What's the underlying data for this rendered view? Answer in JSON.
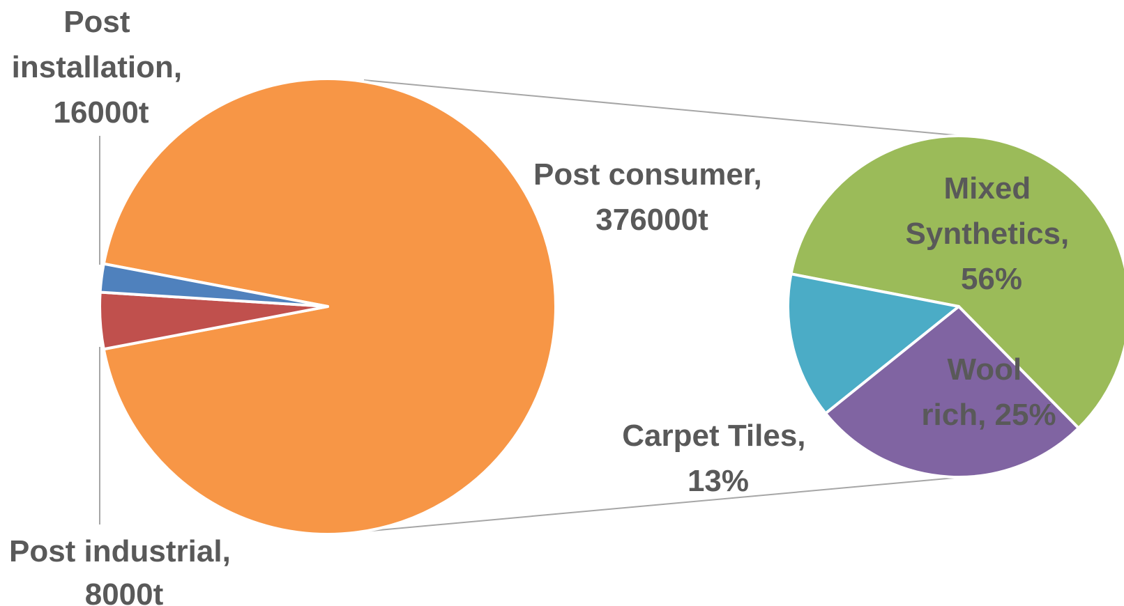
{
  "chart_data": [
    {
      "type": "pie",
      "title": "",
      "slices": [
        {
          "name": "Post consumer",
          "value": 376000,
          "label_name": "Post consumer,",
          "label_value": "376000t",
          "color": "#F79646"
        },
        {
          "name": "Post installation",
          "value": 16000,
          "label_name": "Post",
          "label_name2": "installation,",
          "label_value": "16000t",
          "color": "#C0504D"
        },
        {
          "name": "Post industrial",
          "value": 8000,
          "label_name": "Post industrial,",
          "label_value": "8000t",
          "color": "#4F81BD"
        }
      ],
      "exploded_slice": "Post consumer"
    },
    {
      "type": "pie",
      "title": "",
      "parent": "Post consumer",
      "slices": [
        {
          "name": "Mixed Synthetics",
          "value": 56,
          "label_name": "Mixed",
          "label_name2": "Synthetics,",
          "label_value": "56%",
          "color": "#9BBB59"
        },
        {
          "name": "Wool rich",
          "value": 25,
          "label_name": "Wool",
          "label_value": "rich, 25%",
          "color": "#8064A2"
        },
        {
          "name": "Carpet Tiles",
          "value": 13,
          "label_name": "Carpet Tiles,",
          "label_value": "13%",
          "color": "#4BACC6"
        }
      ]
    }
  ]
}
